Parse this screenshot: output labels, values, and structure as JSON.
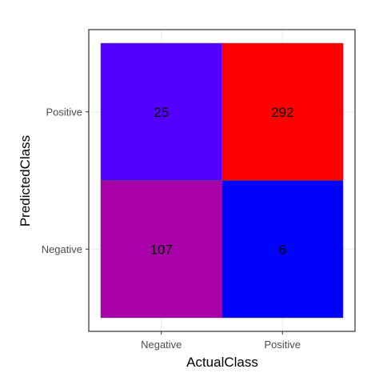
{
  "chart_data": {
    "type": "heatmap",
    "xlabel": "ActualClass",
    "ylabel": "PredictedClass",
    "x_categories": [
      "Negative",
      "Positive"
    ],
    "y_categories": [
      "Negative",
      "Positive"
    ],
    "cells": [
      {
        "actual": "Negative",
        "predicted": "Positive",
        "value": 25,
        "color": "#5500ff"
      },
      {
        "actual": "Positive",
        "predicted": "Positive",
        "value": 292,
        "color": "#ff0000"
      },
      {
        "actual": "Negative",
        "predicted": "Negative",
        "value": 107,
        "color": "#aa00aa"
      },
      {
        "actual": "Positive",
        "predicted": "Negative",
        "value": 6,
        "color": "#0000ff"
      }
    ],
    "grid": true,
    "legend": "none"
  }
}
